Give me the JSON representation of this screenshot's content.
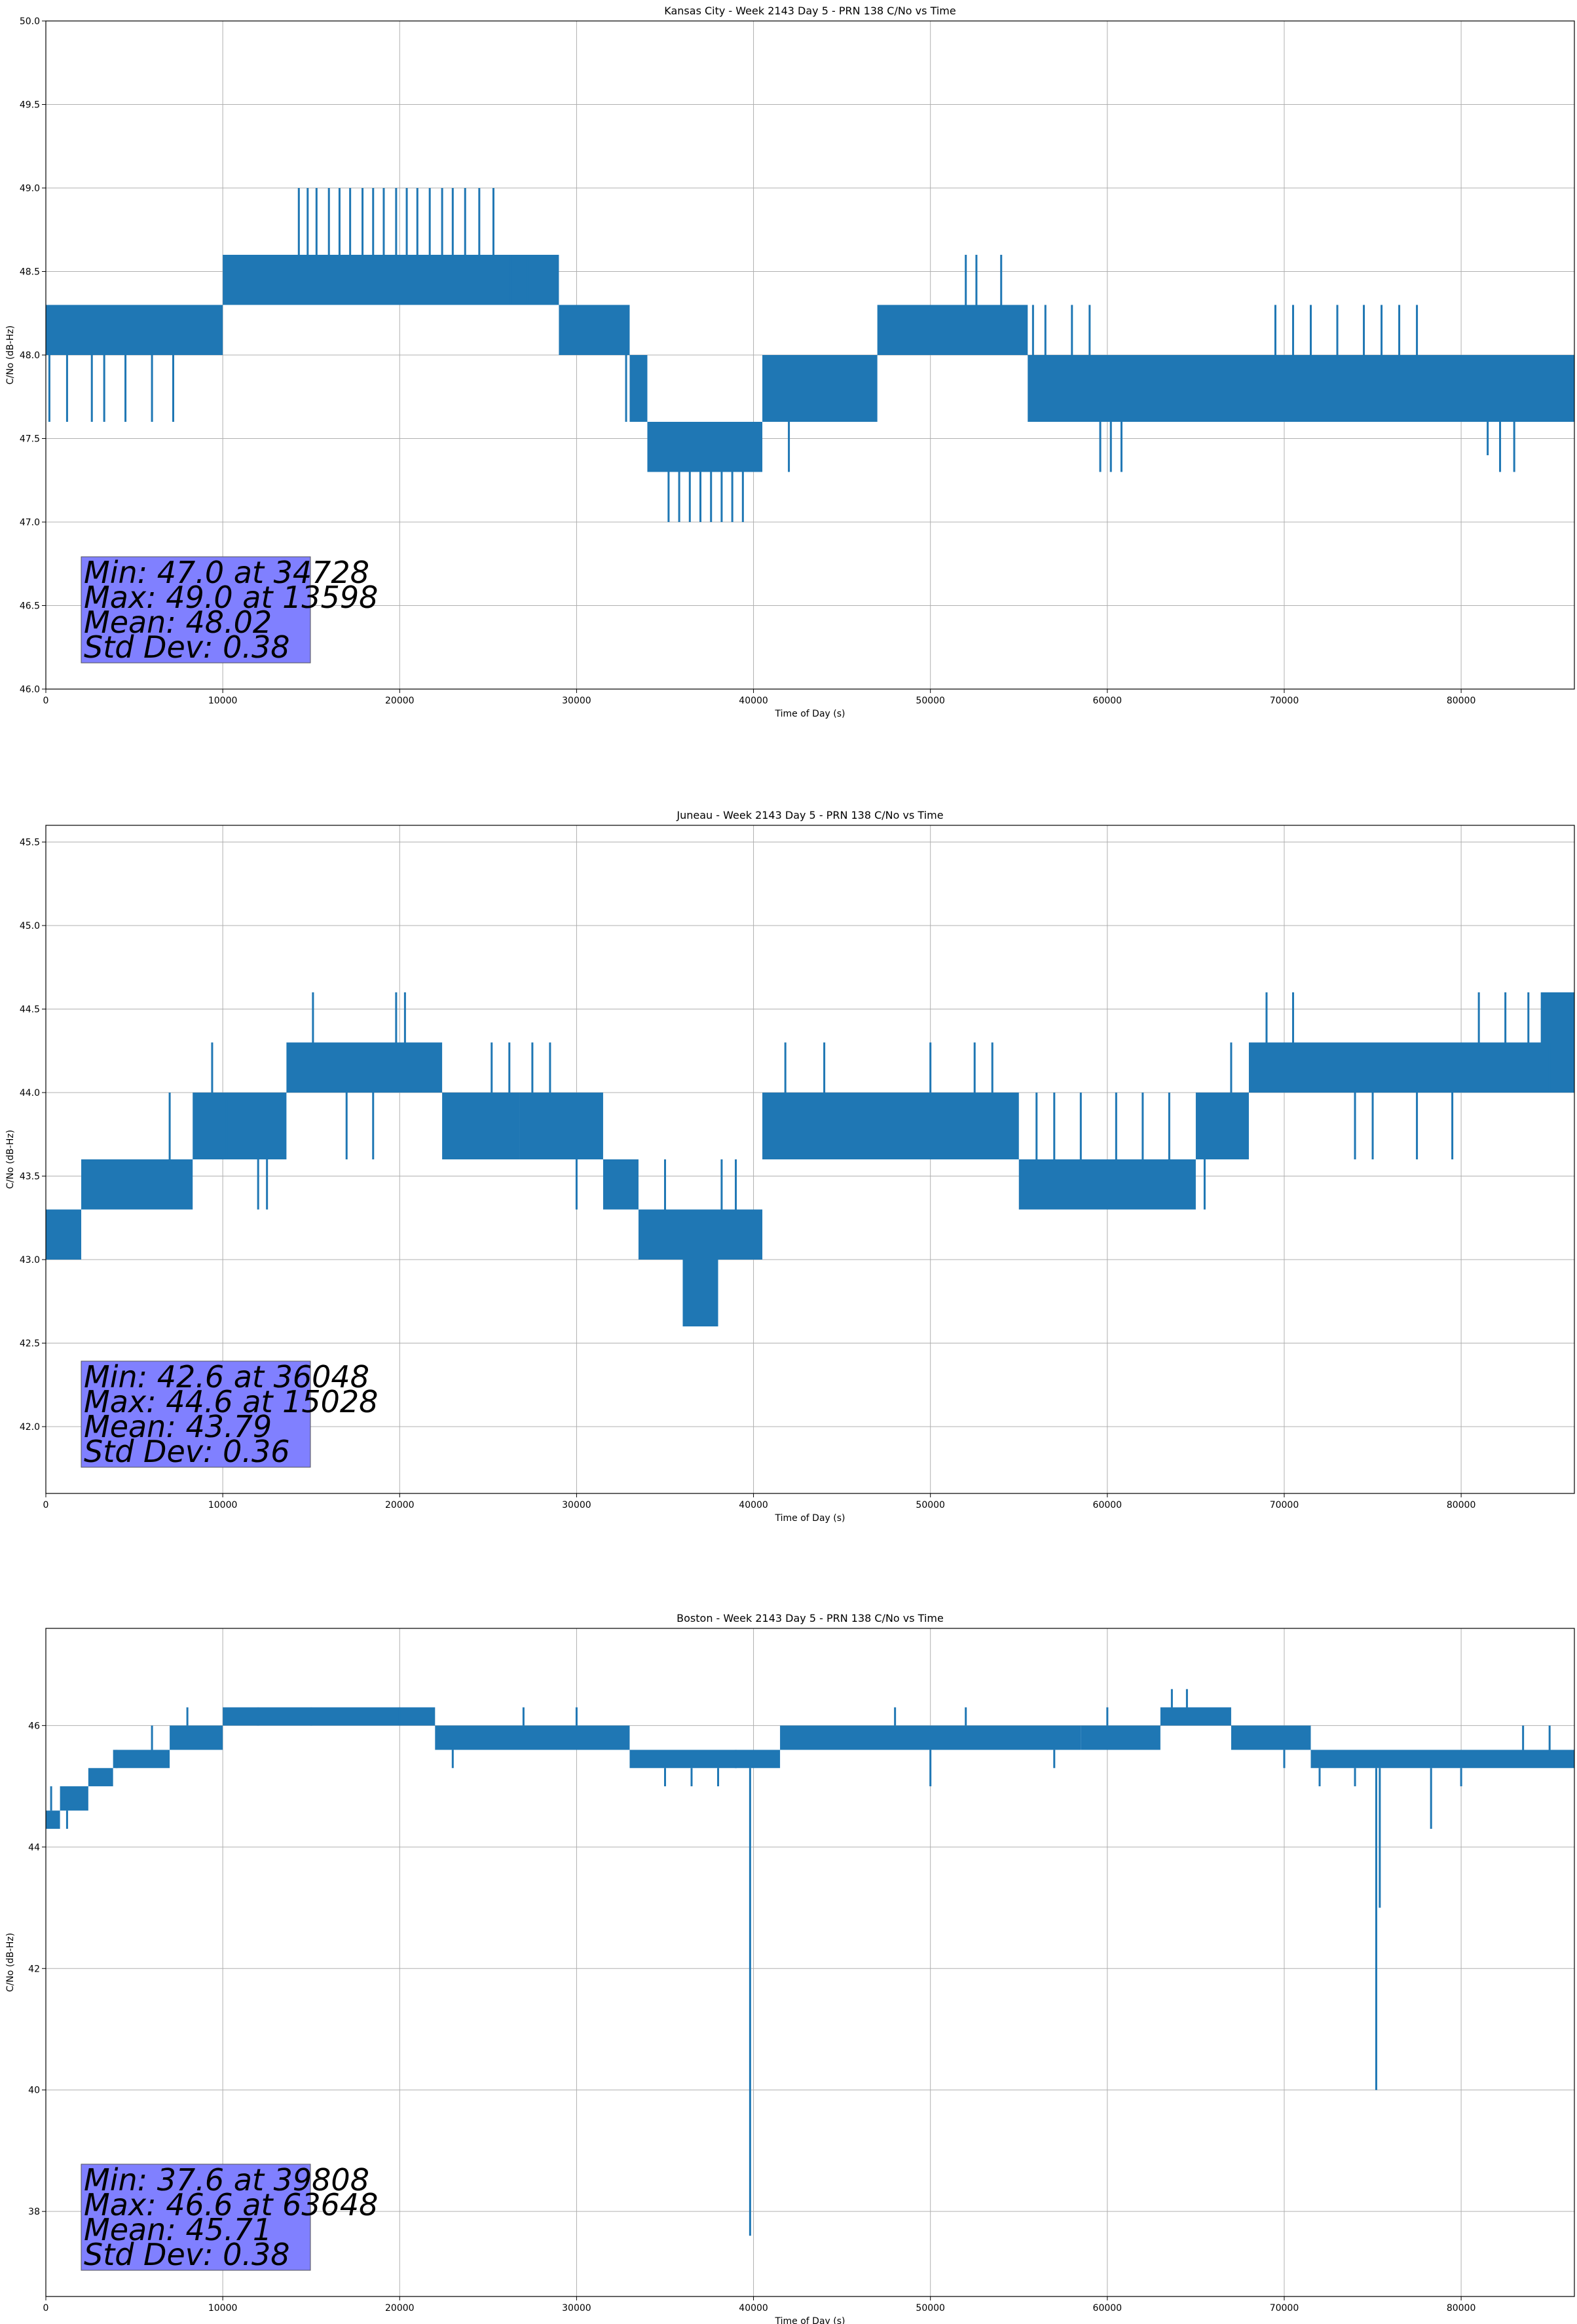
{
  "colors": {
    "series": "#1f77b4",
    "grid": "#b0b0b0",
    "stats_box": "#8080ff"
  },
  "chart_data": [
    {
      "type": "line",
      "title": "Kansas City - Week 2143 Day 5 - PRN 138 C/No vs Time",
      "xlabel": "Time of Day (s)",
      "ylabel": "C/No (dB-Hz)",
      "xlim": [
        0,
        86400
      ],
      "ylim": [
        46.0,
        50.0
      ],
      "xticks": [
        0,
        10000,
        20000,
        30000,
        40000,
        50000,
        60000,
        70000,
        80000
      ],
      "xtick_labels": [
        "0",
        "10000",
        "20000",
        "30000",
        "40000",
        "50000",
        "60000",
        "70000",
        "80000"
      ],
      "yticks": [
        46.0,
        46.5,
        47.0,
        47.5,
        48.0,
        48.5,
        49.0,
        49.5,
        50.0
      ],
      "ytick_labels": [
        "46.0",
        "46.5",
        "47.0",
        "47.5",
        "48.0",
        "48.5",
        "49.0",
        "49.5",
        "50.0"
      ],
      "grid": true,
      "stats": [
        "Min: 47.0 at 34728",
        "Max: 49.0 at 13598",
        "Mean: 48.02",
        "Std Dev: 0.38"
      ],
      "series": [
        {
          "bands": [
            [
              0,
              10000,
              48.0,
              48.3
            ],
            [
              10000,
              29000,
              48.3,
              48.6
            ],
            [
              29000,
              33000,
              48.0,
              48.3
            ],
            [
              33000,
              34000,
              47.6,
              48.0
            ],
            [
              34000,
              40500,
              47.3,
              47.6
            ],
            [
              40500,
              47000,
              47.6,
              48.0
            ],
            [
              47000,
              55500,
              48.0,
              48.3
            ],
            [
              55500,
              86400,
              47.6,
              48.0
            ]
          ],
          "spikes": [
            [
              200,
              47.6
            ],
            [
              1200,
              47.6
            ],
            [
              2600,
              47.6
            ],
            [
              3300,
              47.6
            ],
            [
              4500,
              47.6
            ],
            [
              6000,
              47.6
            ],
            [
              7200,
              47.6
            ],
            [
              10800,
              48.6
            ],
            [
              14300,
              49.0
            ],
            [
              14800,
              49.0
            ],
            [
              15300,
              49.0
            ],
            [
              16000,
              49.0
            ],
            [
              16600,
              49.0
            ],
            [
              17200,
              49.0
            ],
            [
              17900,
              49.0
            ],
            [
              18500,
              49.0
            ],
            [
              19100,
              49.0
            ],
            [
              19800,
              49.0
            ],
            [
              20400,
              49.0
            ],
            [
              21000,
              49.0
            ],
            [
              21700,
              49.0
            ],
            [
              22400,
              49.0
            ],
            [
              23000,
              49.0
            ],
            [
              23700,
              49.0
            ],
            [
              24500,
              49.0
            ],
            [
              25300,
              49.0
            ],
            [
              26300,
              48.6
            ],
            [
              27200,
              48.6
            ],
            [
              27800,
              48.6
            ],
            [
              30200,
              48.0
            ],
            [
              31200,
              48.0
            ],
            [
              32300,
              48.0
            ],
            [
              32800,
              47.6
            ],
            [
              35200,
              47.0
            ],
            [
              35800,
              47.0
            ],
            [
              36400,
              47.0
            ],
            [
              37000,
              47.0
            ],
            [
              37600,
              47.0
            ],
            [
              38200,
              47.0
            ],
            [
              38800,
              47.0
            ],
            [
              39400,
              47.0
            ],
            [
              39900,
              47.3
            ],
            [
              42000,
              47.3
            ],
            [
              45000,
              47.6
            ],
            [
              47500,
              48.3
            ],
            [
              52000,
              48.6
            ],
            [
              52600,
              48.6
            ],
            [
              54000,
              48.6
            ],
            [
              55800,
              48.3
            ],
            [
              56500,
              48.3
            ],
            [
              58000,
              48.3
            ],
            [
              59000,
              48.3
            ],
            [
              59600,
              47.3
            ],
            [
              60200,
              47.3
            ],
            [
              60800,
              47.3
            ],
            [
              67000,
              47.6
            ],
            [
              68000,
              47.6
            ],
            [
              69500,
              48.3
            ],
            [
              70500,
              48.3
            ],
            [
              71500,
              48.3
            ],
            [
              73000,
              48.3
            ],
            [
              74500,
              48.3
            ],
            [
              75500,
              48.3
            ],
            [
              76500,
              48.3
            ],
            [
              77500,
              48.3
            ],
            [
              79000,
              47.6
            ],
            [
              81500,
              47.4
            ],
            [
              82200,
              47.3
            ],
            [
              83000,
              47.3
            ]
          ]
        }
      ]
    },
    {
      "type": "line",
      "title": "Juneau - Week 2143 Day 5 - PRN 138 C/No vs Time",
      "xlabel": "Time of Day (s)",
      "ylabel": "C/No (dB-Hz)",
      "xlim": [
        0,
        86400
      ],
      "ylim": [
        41.6,
        45.6
      ],
      "xticks": [
        0,
        10000,
        20000,
        30000,
        40000,
        50000,
        60000,
        70000,
        80000
      ],
      "xtick_labels": [
        "0",
        "10000",
        "20000",
        "30000",
        "40000",
        "50000",
        "60000",
        "70000",
        "80000"
      ],
      "yticks": [
        42.0,
        42.5,
        43.0,
        43.5,
        44.0,
        44.5,
        45.0,
        45.5
      ],
      "ytick_labels": [
        "42.0",
        "42.5",
        "43.0",
        "43.5",
        "44.0",
        "44.5",
        "45.0",
        "45.5"
      ],
      "grid": true,
      "stats": [
        "Min: 42.6 at 36048",
        "Max: 44.6 at 15028",
        "Mean: 43.79",
        "Std Dev: 0.36"
      ],
      "series": [
        {
          "bands": [
            [
              0,
              2000,
              43.0,
              43.3
            ],
            [
              2000,
              8300,
              43.3,
              43.6
            ],
            [
              8300,
              13600,
              43.6,
              44.0
            ],
            [
              13600,
              22400,
              44.0,
              44.3
            ],
            [
              22400,
              26800,
              43.6,
              44.0
            ],
            [
              26800,
              31500,
              43.6,
              44.0
            ],
            [
              31500,
              33500,
              43.3,
              43.6
            ],
            [
              33500,
              40500,
              43.0,
              43.3
            ],
            [
              36000,
              38000,
              42.6,
              43.0
            ],
            [
              40500,
              55000,
              43.6,
              44.0
            ],
            [
              55000,
              65000,
              43.3,
              43.6
            ],
            [
              65000,
              68000,
              43.6,
              44.0
            ],
            [
              68000,
              86400,
              44.0,
              44.3
            ],
            [
              84500,
              86400,
              44.3,
              44.6
            ]
          ],
          "spikes": [
            [
              700,
              43.0
            ],
            [
              1900,
              43.0
            ],
            [
              3000,
              43.3
            ],
            [
              5000,
              43.3
            ],
            [
              7000,
              44.0
            ],
            [
              9400,
              44.3
            ],
            [
              10200,
              44.0
            ],
            [
              12000,
              43.3
            ],
            [
              12500,
              43.3
            ],
            [
              15100,
              44.6
            ],
            [
              17000,
              43.6
            ],
            [
              18500,
              43.6
            ],
            [
              19800,
              44.6
            ],
            [
              20300,
              44.6
            ],
            [
              23500,
              43.6
            ],
            [
              25200,
              44.3
            ],
            [
              26200,
              44.3
            ],
            [
              27500,
              44.3
            ],
            [
              28500,
              44.3
            ],
            [
              30000,
              43.3
            ],
            [
              31800,
              43.3
            ],
            [
              33000,
              43.3
            ],
            [
              35000,
              43.6
            ],
            [
              36200,
              42.6
            ],
            [
              36800,
              42.6
            ],
            [
              37400,
              42.6
            ],
            [
              38200,
              43.6
            ],
            [
              39000,
              43.6
            ],
            [
              40200,
              43.0
            ],
            [
              41800,
              44.3
            ],
            [
              44000,
              44.3
            ],
            [
              47000,
              43.6
            ],
            [
              50000,
              44.3
            ],
            [
              52500,
              44.3
            ],
            [
              53500,
              44.3
            ],
            [
              56000,
              44.0
            ],
            [
              57000,
              44.0
            ],
            [
              58500,
              44.0
            ],
            [
              60500,
              44.0
            ],
            [
              62000,
              44.0
            ],
            [
              63500,
              44.0
            ],
            [
              65500,
              43.3
            ],
            [
              67000,
              44.3
            ],
            [
              69000,
              44.6
            ],
            [
              70500,
              44.6
            ],
            [
              74000,
              43.6
            ],
            [
              75000,
              43.6
            ],
            [
              77500,
              43.6
            ],
            [
              79500,
              43.6
            ],
            [
              81000,
              44.6
            ],
            [
              82500,
              44.6
            ],
            [
              83800,
              44.6
            ],
            [
              85000,
              44.0
            ]
          ]
        }
      ]
    },
    {
      "type": "line",
      "title": "Boston - Week 2143 Day 5 - PRN 138 C/No vs Time",
      "xlabel": "Time of Day (s)",
      "ylabel": "C/No (dB-Hz)",
      "xlim": [
        0,
        86400
      ],
      "ylim": [
        36.6,
        47.6
      ],
      "xticks": [
        0,
        10000,
        20000,
        30000,
        40000,
        50000,
        60000,
        70000,
        80000
      ],
      "xtick_labels": [
        "0",
        "10000",
        "20000",
        "30000",
        "40000",
        "50000",
        "60000",
        "70000",
        "80000"
      ],
      "yticks": [
        38,
        40,
        42,
        44,
        46
      ],
      "ytick_labels": [
        "38",
        "40",
        "42",
        "44",
        "46"
      ],
      "grid": true,
      "stats": [
        "Min: 37.6 at 39808",
        "Max: 46.6 at 63648",
        "Mean: 45.71",
        "Std Dev: 0.38"
      ],
      "series": [
        {
          "bands": [
            [
              0,
              800,
              44.3,
              44.6
            ],
            [
              800,
              2400,
              44.6,
              45.0
            ],
            [
              2400,
              3800,
              45.0,
              45.3
            ],
            [
              3800,
              7000,
              45.3,
              45.6
            ],
            [
              7000,
              10000,
              45.6,
              46.0
            ],
            [
              10000,
              22000,
              46.0,
              46.3
            ],
            [
              22000,
              33000,
              45.6,
              46.0
            ],
            [
              33000,
              41500,
              45.3,
              45.6
            ],
            [
              41500,
              58500,
              45.6,
              46.0
            ],
            [
              58500,
              63000,
              45.6,
              46.0
            ],
            [
              63000,
              67000,
              46.0,
              46.3
            ],
            [
              67000,
              71500,
              45.6,
              46.0
            ],
            [
              71500,
              86400,
              45.3,
              45.6
            ]
          ],
          "spikes": [
            [
              300,
              45.0
            ],
            [
              1200,
              44.3
            ],
            [
              2000,
              44.6
            ],
            [
              4000,
              45.6
            ],
            [
              6000,
              46.0
            ],
            [
              8000,
              46.3
            ],
            [
              12000,
              46.3
            ],
            [
              15000,
              46.3
            ],
            [
              20000,
              46.3
            ],
            [
              23000,
              45.3
            ],
            [
              27000,
              46.3
            ],
            [
              30000,
              46.3
            ],
            [
              35000,
              45.0
            ],
            [
              36500,
              45.0
            ],
            [
              38000,
              45.0
            ],
            [
              39000,
              45.6
            ],
            [
              39808,
              37.6
            ],
            [
              41000,
              45.3
            ],
            [
              48000,
              46.3
            ],
            [
              50000,
              45.0
            ],
            [
              52000,
              46.3
            ],
            [
              57000,
              45.3
            ],
            [
              60000,
              46.3
            ],
            [
              63648,
              46.6
            ],
            [
              64500,
              46.6
            ],
            [
              70000,
              45.3
            ],
            [
              72000,
              45.0
            ],
            [
              74000,
              45.0
            ],
            [
              75200,
              40.0
            ],
            [
              75400,
              43.0
            ],
            [
              78300,
              44.3
            ],
            [
              80000,
              45.0
            ],
            [
              83500,
              46.0
            ],
            [
              85000,
              46.0
            ]
          ]
        }
      ]
    }
  ]
}
